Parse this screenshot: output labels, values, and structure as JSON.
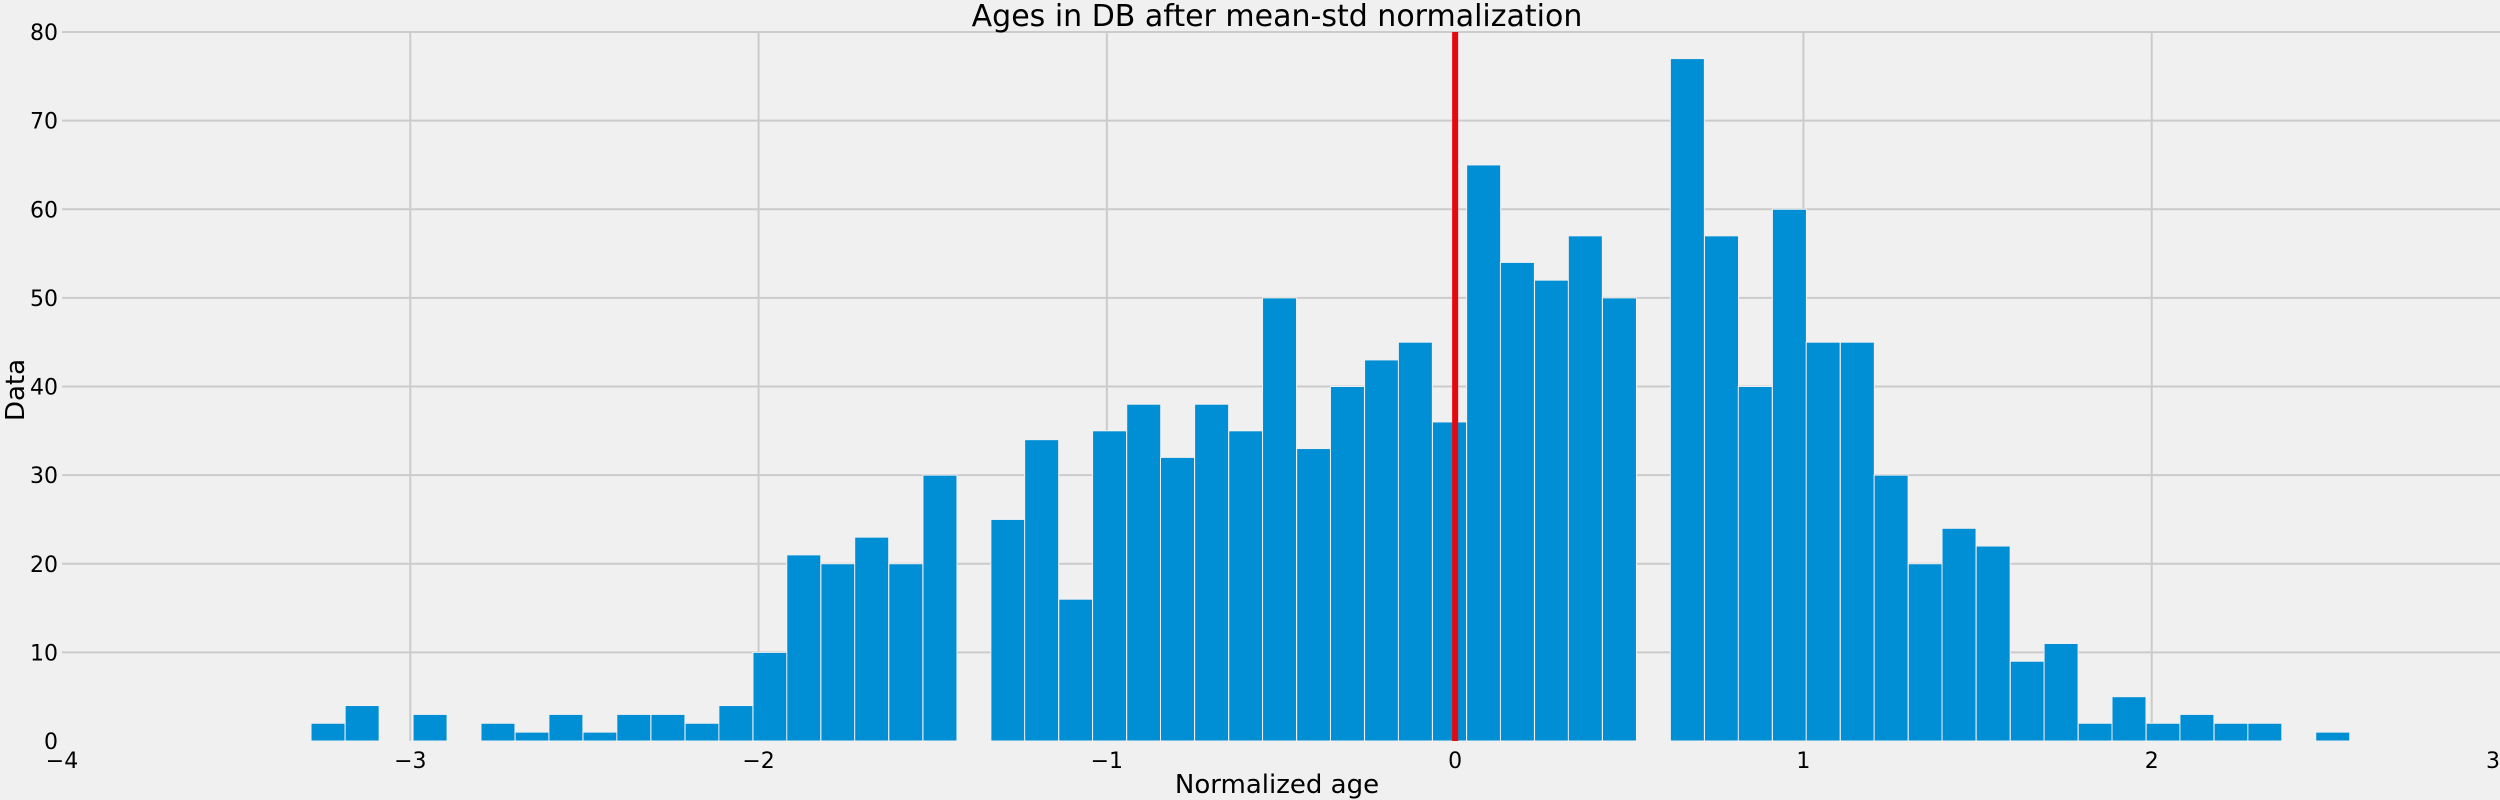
{
  "chart_data": {
    "type": "bar",
    "title": "Ages in DB after mean-std normalization",
    "xlabel": "Normalized age",
    "ylabel": "Data",
    "xlim": [
      -4,
      3
    ],
    "ylim": [
      0,
      80
    ],
    "xticks": [
      -4,
      -3,
      -2,
      -1,
      0,
      1,
      2,
      3
    ],
    "xtick_labels": [
      "−4",
      "−3",
      "−2",
      "−1",
      "0",
      "1",
      "2",
      "3"
    ],
    "yticks": [
      0,
      10,
      20,
      30,
      40,
      50,
      60,
      70,
      80
    ],
    "ytick_labels": [
      "0",
      "10",
      "20",
      "30",
      "40",
      "50",
      "60",
      "70",
      "80"
    ],
    "grid": true,
    "bar_color": "#008fd5",
    "vline": {
      "x": 0,
      "color": "#e5090f"
    },
    "bin_width": 0.0976,
    "bins": [
      {
        "x": -3.285,
        "count": 2
      },
      {
        "x": -3.187,
        "count": 4
      },
      {
        "x": -2.992,
        "count": 3
      },
      {
        "x": -2.797,
        "count": 2
      },
      {
        "x": -2.699,
        "count": 1
      },
      {
        "x": -2.602,
        "count": 3
      },
      {
        "x": -2.504,
        "count": 1
      },
      {
        "x": -2.407,
        "count": 3
      },
      {
        "x": -2.309,
        "count": 3
      },
      {
        "x": -2.211,
        "count": 2
      },
      {
        "x": -2.114,
        "count": 4
      },
      {
        "x": -2.016,
        "count": 10
      },
      {
        "x": -1.919,
        "count": 21
      },
      {
        "x": -1.821,
        "count": 20
      },
      {
        "x": -1.724,
        "count": 23
      },
      {
        "x": -1.626,
        "count": 20
      },
      {
        "x": -1.528,
        "count": 30
      },
      {
        "x": -1.333,
        "count": 25
      },
      {
        "x": -1.236,
        "count": 34
      },
      {
        "x": -1.138,
        "count": 16
      },
      {
        "x": -1.041,
        "count": 35
      },
      {
        "x": -0.943,
        "count": 38
      },
      {
        "x": -0.846,
        "count": 32
      },
      {
        "x": -0.748,
        "count": 38
      },
      {
        "x": -0.65,
        "count": 35
      },
      {
        "x": -0.553,
        "count": 50
      },
      {
        "x": -0.455,
        "count": 33
      },
      {
        "x": -0.358,
        "count": 40
      },
      {
        "x": -0.26,
        "count": 43
      },
      {
        "x": -0.163,
        "count": 45
      },
      {
        "x": -0.065,
        "count": 36
      },
      {
        "x": 0.033,
        "count": 65
      },
      {
        "x": 0.13,
        "count": 54
      },
      {
        "x": 0.228,
        "count": 52
      },
      {
        "x": 0.325,
        "count": 57
      },
      {
        "x": 0.423,
        "count": 50
      },
      {
        "x": 0.618,
        "count": 77
      },
      {
        "x": 0.716,
        "count": 57
      },
      {
        "x": 0.813,
        "count": 40
      },
      {
        "x": 0.911,
        "count": 60
      },
      {
        "x": 1.008,
        "count": 45
      },
      {
        "x": 1.106,
        "count": 45
      },
      {
        "x": 1.203,
        "count": 30
      },
      {
        "x": 1.301,
        "count": 20
      },
      {
        "x": 1.398,
        "count": 24
      },
      {
        "x": 1.496,
        "count": 22
      },
      {
        "x": 1.594,
        "count": 9
      },
      {
        "x": 1.691,
        "count": 11
      },
      {
        "x": 1.789,
        "count": 2
      },
      {
        "x": 1.886,
        "count": 5
      },
      {
        "x": 1.984,
        "count": 2
      },
      {
        "x": 2.081,
        "count": 3
      },
      {
        "x": 2.179,
        "count": 2
      },
      {
        "x": 2.276,
        "count": 2
      },
      {
        "x": 2.471,
        "count": 1
      }
    ]
  }
}
